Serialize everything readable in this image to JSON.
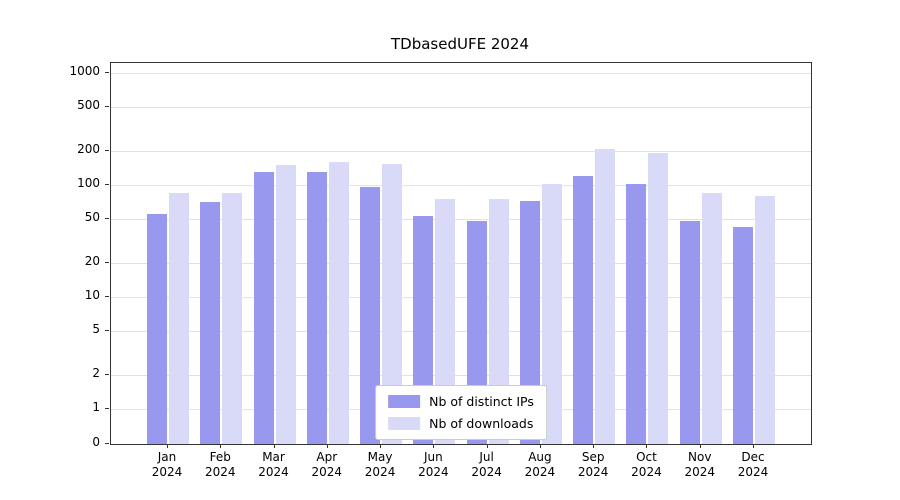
{
  "chart_data": {
    "type": "bar",
    "title": "TDbasedUFE 2024",
    "scale": "symlog",
    "grid": true,
    "legend_position": "lower center",
    "ylim": [
      0,
      1000
    ],
    "yticks": [
      0,
      1,
      2,
      5,
      10,
      20,
      50,
      100,
      200,
      500,
      1000
    ],
    "categories": [
      "Jan\n2024",
      "Feb\n2024",
      "Mar\n2024",
      "Apr\n2024",
      "May\n2024",
      "Jun\n2024",
      "Jul\n2024",
      "Aug\n2024",
      "Sep\n2024",
      "Oct\n2024",
      "Nov\n2024",
      "Dec\n2024"
    ],
    "series": [
      {
        "name": "Nb of distinct IPs",
        "color": "#9898ee",
        "values": [
          55,
          70,
          130,
          130,
          95,
          53,
          48,
          72,
          120,
          102,
          48,
          42
        ]
      },
      {
        "name": "Nb of downloads",
        "color": "#d9d9f8",
        "values": [
          85,
          85,
          150,
          160,
          155,
          75,
          75,
          102,
          210,
          195,
          85,
          80
        ]
      }
    ]
  }
}
